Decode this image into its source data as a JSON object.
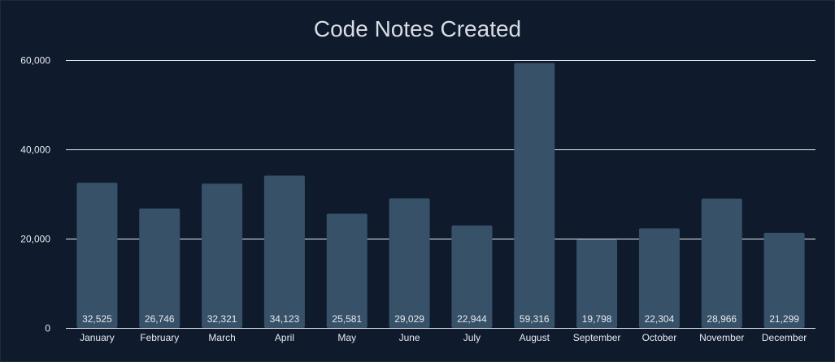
{
  "chart_data": {
    "type": "bar",
    "title": "Code Notes Created",
    "xlabel": "",
    "ylabel": "",
    "categories": [
      "January",
      "February",
      "March",
      "April",
      "May",
      "June",
      "July",
      "August",
      "September",
      "October",
      "November",
      "December"
    ],
    "values": [
      32525,
      26746,
      32321,
      34123,
      25581,
      29029,
      22944,
      59316,
      19798,
      22304,
      28966,
      21299
    ],
    "value_labels": [
      "32,525",
      "26,746",
      "32,321",
      "34,123",
      "25,581",
      "29,029",
      "22,944",
      "59,316",
      "19,798",
      "22,304",
      "28,966",
      "21,299"
    ],
    "ylim": [
      0,
      60000
    ],
    "yticks": [
      0,
      20000,
      40000,
      60000
    ],
    "ytick_labels": [
      "0",
      "20,000",
      "40,000",
      "60,000"
    ],
    "grid": true,
    "legend": "none",
    "colors": {
      "background": "#0f1b2d",
      "bar": "#375168",
      "grid": "#e6e9ee",
      "text": "#e6e9ee"
    }
  }
}
